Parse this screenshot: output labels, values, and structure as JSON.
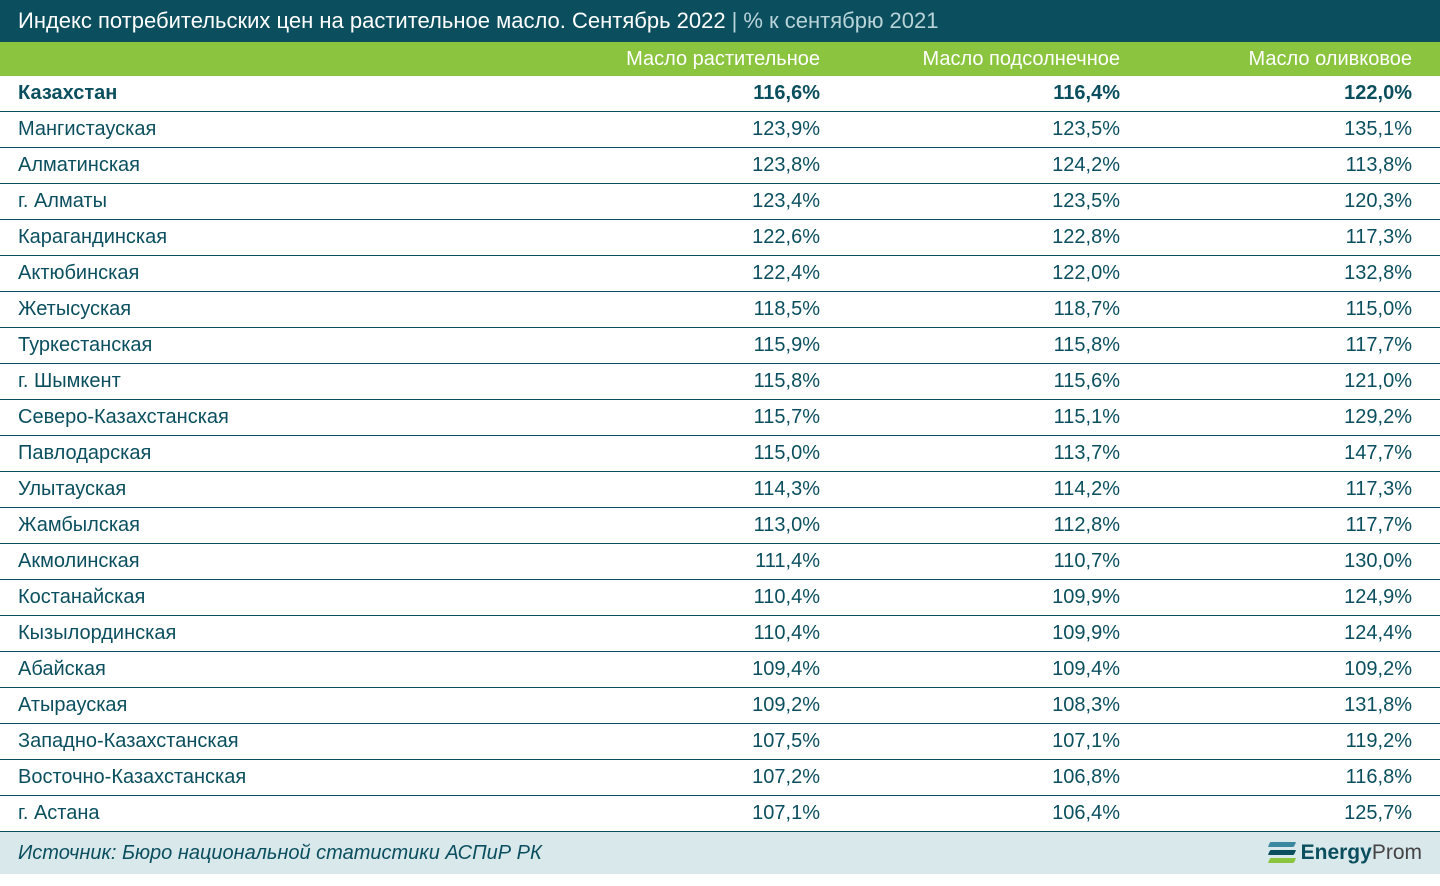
{
  "title": {
    "main": "Индекс потребительских цен на растительное масло. Сентябрь 2022",
    "separator": " | ",
    "sub": "% к сентябрю 2021"
  },
  "colors": {
    "title_bg": "#0b4f5f",
    "header_bg": "#8bc53f",
    "text": "#0b4f5f",
    "footer_bg": "#d9e8eb"
  },
  "columns": [
    "Масло растительное",
    "Масло подсолнечное",
    "Масло оливковое"
  ],
  "rows": [
    {
      "region": "Казахстан",
      "v1": "116,6%",
      "v2": "116,4%",
      "v3": "122,0%",
      "bold": true
    },
    {
      "region": "Мангистауская",
      "v1": "123,9%",
      "v2": "123,5%",
      "v3": "135,1%",
      "bold": false
    },
    {
      "region": "Алматинская",
      "v1": "123,8%",
      "v2": "124,2%",
      "v3": "113,8%",
      "bold": false
    },
    {
      "region": "г. Алматы",
      "v1": "123,4%",
      "v2": "123,5%",
      "v3": "120,3%",
      "bold": false
    },
    {
      "region": "Карагандинская",
      "v1": "122,6%",
      "v2": "122,8%",
      "v3": "117,3%",
      "bold": false
    },
    {
      "region": "Актюбинская",
      "v1": "122,4%",
      "v2": "122,0%",
      "v3": "132,8%",
      "bold": false
    },
    {
      "region": "Жетысуская",
      "v1": "118,5%",
      "v2": "118,7%",
      "v3": "115,0%",
      "bold": false
    },
    {
      "region": "Туркестанская",
      "v1": "115,9%",
      "v2": "115,8%",
      "v3": "117,7%",
      "bold": false
    },
    {
      "region": "г. Шымкент",
      "v1": "115,8%",
      "v2": "115,6%",
      "v3": "121,0%",
      "bold": false
    },
    {
      "region": "Северо-Казахстанская",
      "v1": "115,7%",
      "v2": "115,1%",
      "v3": "129,2%",
      "bold": false
    },
    {
      "region": "Павлодарская",
      "v1": "115,0%",
      "v2": "113,7%",
      "v3": "147,7%",
      "bold": false
    },
    {
      "region": "Улытауская",
      "v1": "114,3%",
      "v2": "114,2%",
      "v3": "117,3%",
      "bold": false
    },
    {
      "region": "Жамбылская",
      "v1": "113,0%",
      "v2": "112,8%",
      "v3": "117,7%",
      "bold": false
    },
    {
      "region": "Акмолинская",
      "v1": "111,4%",
      "v2": "110,7%",
      "v3": "130,0%",
      "bold": false
    },
    {
      "region": "Костанайская",
      "v1": "110,4%",
      "v2": "109,9%",
      "v3": "124,9%",
      "bold": false
    },
    {
      "region": "Кызылординская",
      "v1": "110,4%",
      "v2": "109,9%",
      "v3": "124,4%",
      "bold": false
    },
    {
      "region": "Абайская",
      "v1": "109,4%",
      "v2": "109,4%",
      "v3": "109,2%",
      "bold": false
    },
    {
      "region": "Атырауская",
      "v1": "109,2%",
      "v2": "108,3%",
      "v3": "131,8%",
      "bold": false
    },
    {
      "region": "Западно-Казахстанская",
      "v1": "107,5%",
      "v2": "107,1%",
      "v3": "119,2%",
      "bold": false
    },
    {
      "region": "Восточно-Казахстанская",
      "v1": "107,2%",
      "v2": "106,8%",
      "v3": "116,8%",
      "bold": false
    },
    {
      "region": "г. Астана",
      "v1": "107,1%",
      "v2": "106,4%",
      "v3": "125,7%",
      "bold": false
    }
  ],
  "footer": {
    "source": "Источник: Бюро национальной статистики АСПиР РК",
    "logo_bold": "Energy",
    "logo_light": "Prom"
  }
}
